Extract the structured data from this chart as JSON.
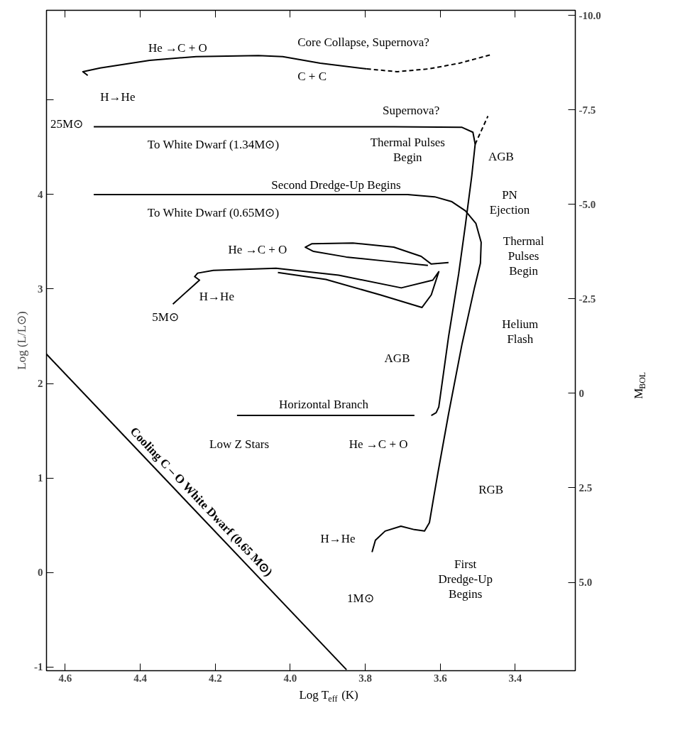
{
  "chart_data": {
    "type": "line",
    "xlabel": "Log T$_{eff}$ (K)",
    "ylabel": "Log (L/L⊙)",
    "y2label": "M$_{BOL}$",
    "xlim": [
      4.65,
      3.24
    ],
    "ylim": [
      -1.04,
      5.95
    ],
    "y2lim": [
      7.34,
      -10.14
    ],
    "xticks": [
      4.6,
      4.4,
      4.2,
      {
        "value": 4.0,
        "label": "4.0"
      },
      3.8,
      3.6,
      3.4
    ],
    "yticks": [
      -1,
      0,
      1,
      2,
      3,
      4,
      {
        "value": 5,
        "label": null
      }
    ],
    "y2ticks": [
      {
        "value": -10,
        "label": "-10.0"
      },
      {
        "value": -7.5,
        "label": "-7.5"
      },
      {
        "value": -5,
        "label": "-5.0"
      },
      {
        "value": -2.5,
        "label": "-2.5"
      },
      {
        "value": 0,
        "label": "0"
      },
      {
        "value": 2.5,
        "label": "2.5"
      },
      {
        "value": 5,
        "label": "5.0"
      }
    ],
    "grid": false,
    "line_style": "solid",
    "marker": "none",
    "series": [
      {
        "name": "Cooling C – O White Dwarf (0.65 M⊙)",
        "color": "#000000",
        "x": [
          4.65,
          3.85
        ],
        "values": [
          2.31,
          -1.03
        ]
      },
      {
        "color": "#000000",
        "x": [
          4.54,
          4.553,
          4.507,
          4.375,
          4.251,
          4.085,
          4.02,
          3.92,
          3.796
        ],
        "values": [
          5.26,
          5.3,
          5.34,
          5.42,
          5.46,
          5.47,
          5.46,
          5.39,
          5.33
        ]
      },
      {
        "color": "#000000",
        "line_style": "dashed",
        "x": [
          3.796,
          3.715,
          3.631,
          3.549,
          3.465
        ],
        "values": [
          5.33,
          5.3,
          5.33,
          5.39,
          5.48
        ]
      },
      {
        "color": "#000000",
        "x": [
          3.624,
          3.611,
          3.604,
          3.578,
          3.551,
          3.533,
          3.516,
          3.507,
          3.513,
          3.542,
          3.724,
          4.087,
          4.524
        ],
        "values": [
          1.662,
          1.691,
          1.751,
          2.493,
          3.16,
          3.68,
          4.199,
          4.533,
          4.659,
          4.711,
          4.718,
          4.718,
          4.718
        ]
      },
      {
        "color": "#000000",
        "line_style": "dashed",
        "x": [
          3.507,
          3.473
        ],
        "values": [
          4.533,
          4.83
        ]
      },
      {
        "color": "#000000",
        "x": [
          3.782,
          3.773,
          3.747,
          3.705,
          3.669,
          3.642,
          3.629,
          3.618,
          3.605,
          3.578,
          3.542,
          3.509,
          3.493,
          3.491,
          3.505,
          3.533,
          3.569,
          3.615,
          3.687,
          4.087,
          4.524
        ],
        "values": [
          0.215,
          0.341,
          0.438,
          0.49,
          0.453,
          0.438,
          0.527,
          0.786,
          1.083,
          1.677,
          2.418,
          3.012,
          3.272,
          3.494,
          3.694,
          3.828,
          3.924,
          3.976,
          3.999,
          3.999,
          3.999
        ]
      },
      {
        "color": "#000000",
        "x": [
          4.313,
          4.242,
          4.255,
          4.247,
          4.205,
          4.038,
          3.871,
          3.704,
          3.62,
          3.604,
          3.624,
          3.649,
          3.76,
          3.905,
          4.033
        ],
        "values": [
          2.841,
          3.094,
          3.131,
          3.168,
          3.197,
          3.22,
          3.146,
          3.012,
          3.094,
          3.183,
          2.938,
          2.804,
          2.938,
          3.101,
          3.175
        ]
      },
      {
        "color": "#000000",
        "x": [
          3.633,
          3.742,
          3.851,
          3.938,
          3.96,
          3.942,
          3.833,
          3.724,
          3.651,
          3.624,
          3.578
        ],
        "values": [
          3.25,
          3.294,
          3.339,
          3.398,
          3.443,
          3.48,
          3.487,
          3.443,
          3.346,
          3.264,
          3.279
        ]
      },
      {
        "color": "#000000",
        "x": [
          4.142,
          3.669
        ],
        "values": [
          1.662,
          1.662
        ]
      }
    ],
    "annotations": [
      "He →C + O",
      "Core Collapse, Supernova?",
      "C + C",
      "H→He",
      "25M⊙",
      "To White Dwarf (1.34M⊙)",
      "Supernova?",
      "Thermal Pulses\nBegin",
      "AGB",
      "Second Dredge-Up Begins",
      "PN\nEjection",
      "To White Dwarf (0.65M⊙)",
      "He →C + O",
      "Thermal\nPulses\nBegin",
      "H→He",
      "5M⊙",
      "Helium\nFlash",
      "AGB",
      "Horizontal Branch",
      "Low Z Stars",
      "He →C + O",
      "RGB",
      "H→He",
      "1M⊙",
      "First\nDredge-Up\nBegins"
    ]
  }
}
